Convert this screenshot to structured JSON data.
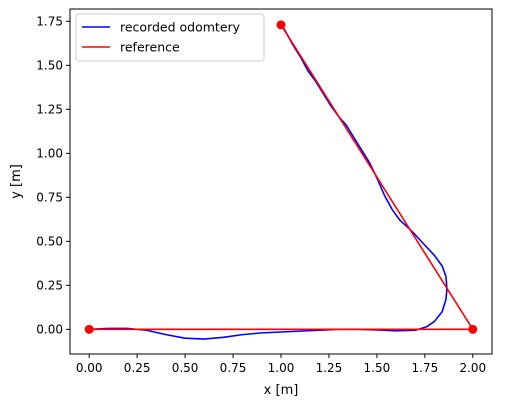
{
  "chart_data": {
    "type": "line",
    "title": "",
    "xlabel": "x [m]",
    "ylabel": "y [m]",
    "xlim": [
      -0.1,
      2.1
    ],
    "ylim": [
      -0.14,
      1.82
    ],
    "xticks": [
      0.0,
      0.25,
      0.5,
      0.75,
      1.0,
      1.25,
      1.5,
      1.75,
      2.0
    ],
    "xtick_labels": [
      "0.00",
      "0.25",
      "0.50",
      "0.75",
      "1.00",
      "1.25",
      "1.50",
      "1.75",
      "2.00"
    ],
    "yticks": [
      0.0,
      0.25,
      0.5,
      0.75,
      1.0,
      1.25,
      1.5,
      1.75
    ],
    "ytick_labels": [
      "0.00",
      "0.25",
      "0.50",
      "0.75",
      "1.00",
      "1.25",
      "1.50",
      "1.75"
    ],
    "grid": false,
    "legend": {
      "position": "top-left"
    },
    "series": [
      {
        "name": "recorded odomtery",
        "color": "#0000ff",
        "x": [
          0.0,
          0.1,
          0.2,
          0.3,
          0.4,
          0.5,
          0.6,
          0.7,
          0.8,
          0.9,
          1.0,
          1.1,
          1.2,
          1.3,
          1.4,
          1.5,
          1.6,
          1.7,
          1.76,
          1.8,
          1.84,
          1.86,
          1.865,
          1.86,
          1.84,
          1.8,
          1.74,
          1.68,
          1.62,
          1.58,
          1.54,
          1.5,
          1.46,
          1.42,
          1.38,
          1.34,
          1.3,
          1.26,
          1.22,
          1.18,
          1.14,
          1.1,
          1.06,
          1.02,
          1.0
        ],
        "y": [
          0.0,
          0.005,
          0.005,
          -0.005,
          -0.03,
          -0.05,
          -0.055,
          -0.045,
          -0.03,
          -0.02,
          -0.015,
          -0.01,
          -0.005,
          0.0,
          0.0,
          -0.003,
          -0.008,
          -0.005,
          0.015,
          0.045,
          0.1,
          0.17,
          0.23,
          0.3,
          0.36,
          0.42,
          0.49,
          0.56,
          0.62,
          0.68,
          0.76,
          0.86,
          0.95,
          1.02,
          1.09,
          1.16,
          1.21,
          1.27,
          1.34,
          1.41,
          1.47,
          1.55,
          1.62,
          1.7,
          1.73
        ]
      },
      {
        "name": "reference",
        "color": "#ff0000",
        "x": [
          0.0,
          2.0,
          1.0
        ],
        "y": [
          0.0,
          0.0,
          1.73
        ],
        "markers": true
      }
    ]
  }
}
